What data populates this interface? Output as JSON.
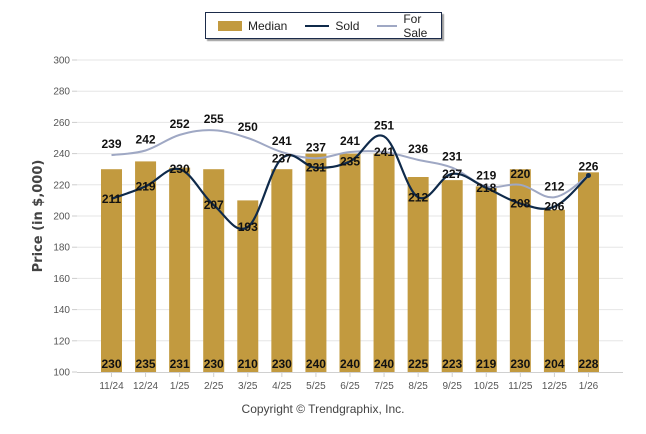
{
  "chart_data": {
    "type": "bar",
    "title": "",
    "xlabel": "",
    "ylabel": "Price (in $,000)",
    "ylim": [
      100,
      300
    ],
    "yticks": [
      100,
      120,
      140,
      160,
      180,
      200,
      220,
      240,
      260,
      280,
      300
    ],
    "grid": true,
    "legend_position": "top-center",
    "categories": [
      "11/24",
      "12/24",
      "1/25",
      "2/25",
      "3/25",
      "4/25",
      "5/25",
      "6/25",
      "7/25",
      "8/25",
      "9/25",
      "10/25",
      "11/25",
      "12/25",
      "1/26"
    ],
    "series": [
      {
        "name": "Median",
        "kind": "bar",
        "color": "#C29A3F",
        "values": [
          230,
          235,
          231,
          230,
          210,
          230,
          240,
          240,
          240,
          225,
          223,
          219,
          230,
          204,
          228
        ]
      },
      {
        "name": "Sold",
        "kind": "line",
        "color": "#0f2a4a",
        "values": [
          211,
          219,
          230,
          207,
          193,
          237,
          231,
          235,
          251,
          212,
          227,
          218,
          208,
          206,
          226
        ]
      },
      {
        "name": "For Sale",
        "kind": "line",
        "color": "#9fa8c4",
        "values": [
          239,
          242,
          252,
          255,
          250,
          241,
          237,
          241,
          241,
          236,
          231,
          219,
          220,
          212,
          226
        ]
      }
    ]
  },
  "legend": {
    "median": "Median",
    "sold": "Sold",
    "for_sale": "For Sale"
  },
  "footer": {
    "copyright": "Copyright © Trendgraphix, Inc."
  }
}
